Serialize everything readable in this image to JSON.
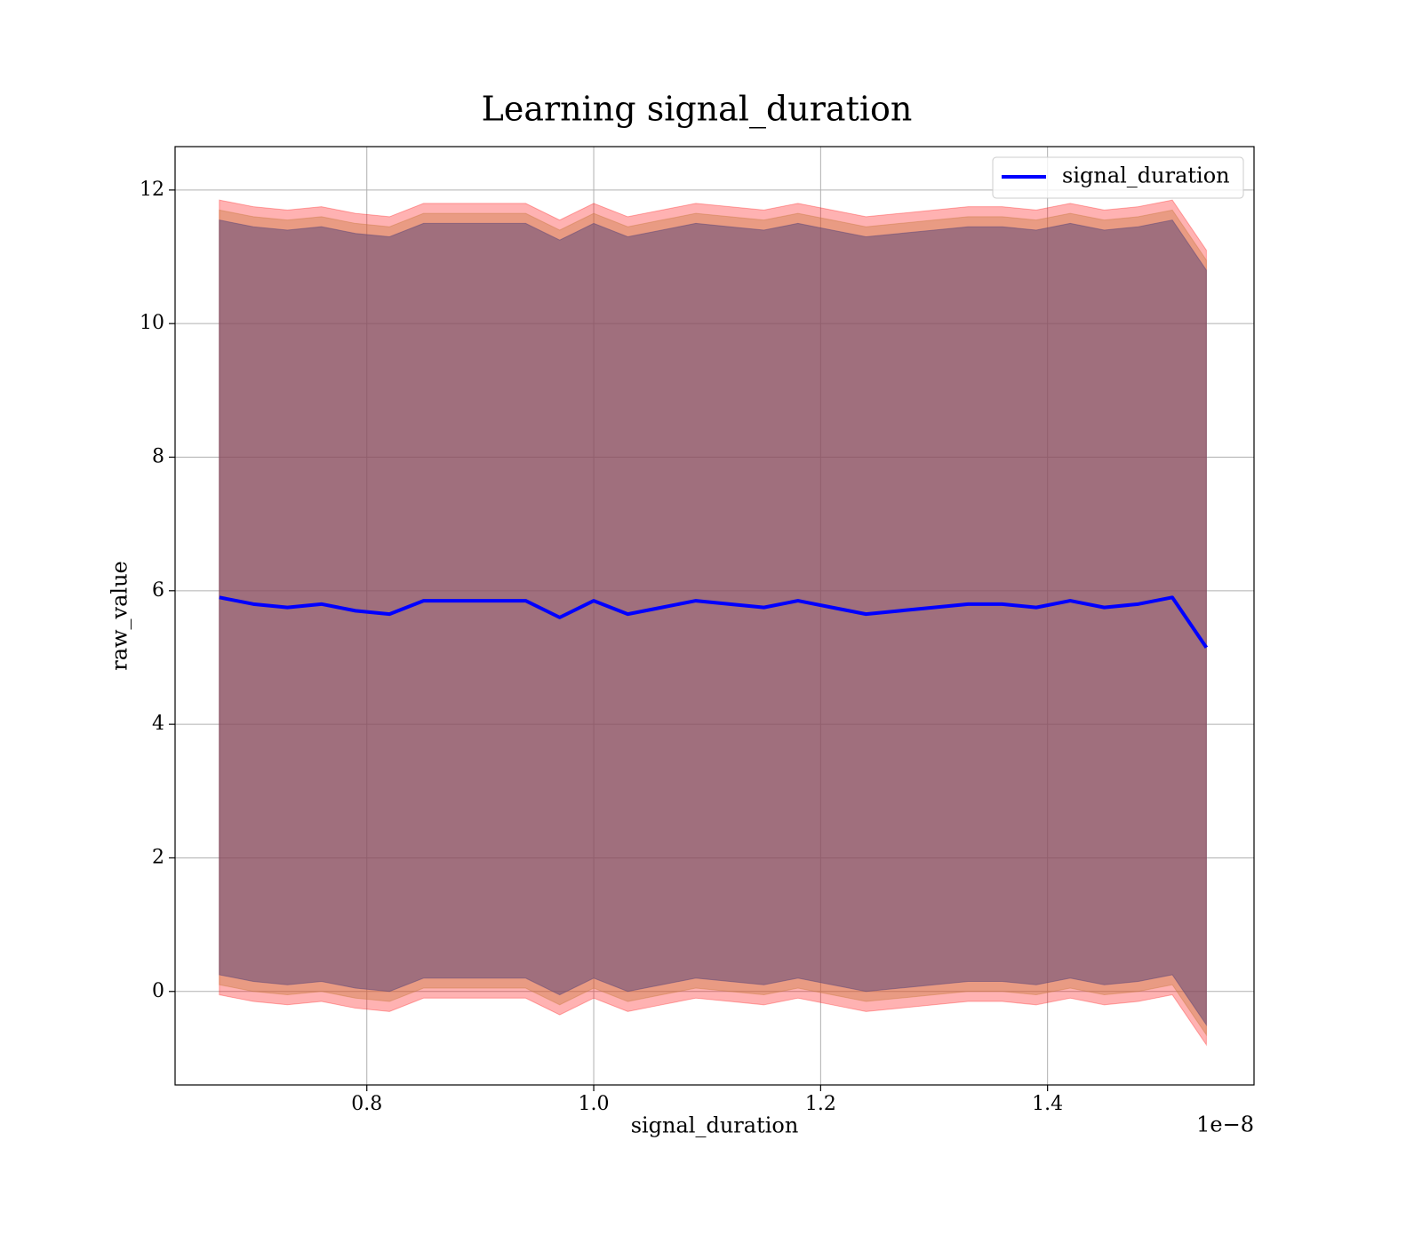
{
  "chart_data": {
    "type": "line",
    "title": "Learning signal_duration",
    "x_label": "signal_duration",
    "y_label": "raw_value",
    "x_offset_label": "1e−8",
    "x": [
      0.67,
      0.7,
      0.73,
      0.76,
      0.79,
      0.82,
      0.85,
      0.88,
      0.91,
      0.94,
      0.97,
      1.0,
      1.03,
      1.06,
      1.09,
      1.12,
      1.15,
      1.18,
      1.21,
      1.24,
      1.27,
      1.3,
      1.33,
      1.36,
      1.39,
      1.42,
      1.45,
      1.48,
      1.51,
      1.54
    ],
    "series": [
      {
        "name": "signal_duration",
        "color": "#0000ff",
        "values": [
          5.9,
          5.8,
          5.75,
          5.8,
          5.7,
          5.65,
          5.85,
          5.85,
          5.85,
          5.85,
          5.6,
          5.85,
          5.65,
          5.75,
          5.85,
          5.8,
          5.75,
          5.85,
          5.75,
          5.65,
          5.7,
          5.75,
          5.8,
          5.8,
          5.75,
          5.85,
          5.75,
          5.8,
          5.9,
          5.15
        ]
      }
    ],
    "bands": [
      {
        "color": "#ff0000",
        "alpha": 0.3,
        "upper": [
          11.85,
          11.75,
          11.7,
          11.75,
          11.65,
          11.6,
          11.8,
          11.8,
          11.8,
          11.8,
          11.55,
          11.8,
          11.6,
          11.7,
          11.8,
          11.75,
          11.7,
          11.8,
          11.7,
          11.6,
          11.65,
          11.7,
          11.75,
          11.75,
          11.7,
          11.8,
          11.7,
          11.75,
          11.85,
          11.1
        ],
        "lower": [
          -0.05,
          -0.15,
          -0.2,
          -0.15,
          -0.25,
          -0.3,
          -0.1,
          -0.1,
          -0.1,
          -0.1,
          -0.35,
          -0.1,
          -0.3,
          -0.2,
          -0.1,
          -0.15,
          -0.2,
          -0.1,
          -0.2,
          -0.3,
          -0.25,
          -0.2,
          -0.15,
          -0.15,
          -0.2,
          -0.1,
          -0.2,
          -0.15,
          -0.05,
          -0.8
        ]
      },
      {
        "color": "#c8783c",
        "alpha": 0.4,
        "upper": [
          11.7,
          11.6,
          11.55,
          11.6,
          11.5,
          11.45,
          11.65,
          11.65,
          11.65,
          11.65,
          11.4,
          11.65,
          11.45,
          11.55,
          11.65,
          11.6,
          11.55,
          11.65,
          11.55,
          11.45,
          11.5,
          11.55,
          11.6,
          11.6,
          11.55,
          11.65,
          11.55,
          11.6,
          11.7,
          10.95
        ],
        "lower": [
          0.1,
          0,
          -0.05,
          0,
          -0.1,
          -0.15,
          0.05,
          0.05,
          0.05,
          0.05,
          -0.2,
          0.05,
          -0.15,
          -0.05,
          0.05,
          0,
          -0.05,
          0.05,
          -0.05,
          -0.15,
          -0.1,
          -0.05,
          0,
          0,
          -0.05,
          0.05,
          -0.05,
          0,
          0.1,
          -0.65
        ]
      },
      {
        "color": "#644b78",
        "alpha": 0.55,
        "upper": [
          11.55,
          11.45,
          11.4,
          11.45,
          11.35,
          11.3,
          11.5,
          11.5,
          11.5,
          11.5,
          11.25,
          11.5,
          11.3,
          11.4,
          11.5,
          11.45,
          11.4,
          11.5,
          11.4,
          11.3,
          11.35,
          11.4,
          11.45,
          11.45,
          11.4,
          11.5,
          11.4,
          11.45,
          11.55,
          10.8
        ],
        "lower": [
          0.25,
          0.15,
          0.1,
          0.15,
          0.05,
          0,
          0.2,
          0.2,
          0.2,
          0.2,
          -0.05,
          0.2,
          0,
          0.1,
          0.2,
          0.15,
          0.1,
          0.2,
          0.1,
          0,
          0.05,
          0.1,
          0.15,
          0.15,
          0.1,
          0.2,
          0.1,
          0.15,
          0.25,
          -0.5
        ]
      }
    ],
    "xlim": [
      0.631,
      1.582
    ],
    "ylim": [
      -1.4,
      12.65
    ],
    "xticks": [
      0.8,
      {
        "value": 1.0,
        "label": "1.0"
      },
      1.2,
      1.4
    ],
    "yticks": [
      0,
      2,
      4,
      6,
      8,
      10,
      12
    ],
    "grid": true,
    "legend": "upper right"
  }
}
